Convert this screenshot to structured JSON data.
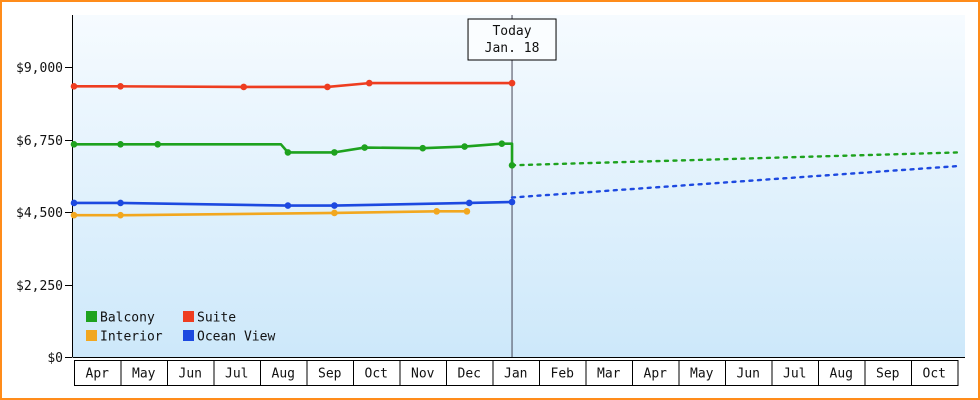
{
  "frame": {
    "border_color": "#ff8c1a"
  },
  "chart_data": {
    "type": "line",
    "title": "",
    "xlabel": "",
    "ylabel": "",
    "xlim": [
      0,
      19.2
    ],
    "ylim": [
      0,
      9750
    ],
    "grid": false,
    "y_axis": {
      "ticks": [
        0,
        2250,
        4500,
        6750,
        9000
      ],
      "tick_labels": [
        "$0",
        "$2,250",
        "$4,500",
        "$6,750",
        "$9,000"
      ]
    },
    "x_axis": {
      "unit": "month",
      "labels": [
        "Apr",
        "May",
        "Jun",
        "Jul",
        "Aug",
        "Sep",
        "Oct",
        "Nov",
        "Dec",
        "Jan",
        "Feb",
        "Mar",
        "Apr",
        "May",
        "Jun",
        "Jul",
        "Aug",
        "Sep",
        "Oct"
      ]
    },
    "today": {
      "label": [
        "Today",
        "Jan. 18"
      ],
      "month_position": 9.42
    },
    "plot_bg": {
      "top_color": "#f6fbff",
      "bottom_color": "#cde8fa"
    },
    "legend": {
      "position": "bottom-left",
      "columns": 2
    },
    "series": [
      {
        "name": "Balcony",
        "color": "#1ea21e",
        "solid": [
          [
            0,
            6600
          ],
          [
            1,
            6600
          ],
          [
            1.8,
            6600
          ],
          [
            4.45,
            6600
          ],
          [
            4.6,
            6350
          ],
          [
            5.6,
            6350
          ],
          [
            6.25,
            6500
          ],
          [
            7.5,
            6480
          ],
          [
            8.4,
            6530
          ],
          [
            9.2,
            6620
          ],
          [
            9.42,
            6620
          ],
          [
            9.42,
            5950
          ]
        ],
        "markers": [
          [
            0,
            6600
          ],
          [
            1,
            6600
          ],
          [
            1.8,
            6600
          ],
          [
            4.6,
            6350
          ],
          [
            5.6,
            6350
          ],
          [
            6.25,
            6500
          ],
          [
            7.5,
            6480
          ],
          [
            8.4,
            6530
          ],
          [
            9.2,
            6620
          ],
          [
            9.42,
            5950
          ]
        ],
        "dotted": [
          [
            9.42,
            5950
          ],
          [
            19.05,
            6350
          ]
        ]
      },
      {
        "name": "Suite",
        "color": "#ee3d20",
        "solid": [
          [
            0,
            8400
          ],
          [
            1,
            8400
          ],
          [
            3.65,
            8380
          ],
          [
            5.45,
            8380
          ],
          [
            6.35,
            8500
          ],
          [
            9.42,
            8500
          ]
        ],
        "markers": [
          [
            0,
            8400
          ],
          [
            1,
            8400
          ],
          [
            3.65,
            8380
          ],
          [
            5.45,
            8380
          ],
          [
            6.35,
            8500
          ],
          [
            9.42,
            8500
          ]
        ],
        "dotted": []
      },
      {
        "name": "Interior",
        "color": "#f2a71f",
        "solid": [
          [
            0,
            4400
          ],
          [
            1,
            4400
          ],
          [
            5.6,
            4470
          ],
          [
            7.8,
            4520
          ],
          [
            8.45,
            4520
          ]
        ],
        "markers": [
          [
            0,
            4400
          ],
          [
            1,
            4400
          ],
          [
            5.6,
            4470
          ],
          [
            7.8,
            4520
          ],
          [
            8.45,
            4520
          ]
        ],
        "dotted": []
      },
      {
        "name": "Ocean View",
        "color": "#1d49e0",
        "solid": [
          [
            0,
            4780
          ],
          [
            1,
            4780
          ],
          [
            4.6,
            4700
          ],
          [
            5.6,
            4700
          ],
          [
            8.5,
            4780
          ],
          [
            9.42,
            4810
          ]
        ],
        "markers": [
          [
            0,
            4780
          ],
          [
            1,
            4780
          ],
          [
            4.6,
            4700
          ],
          [
            5.6,
            4700
          ],
          [
            8.5,
            4780
          ],
          [
            9.42,
            4810
          ]
        ],
        "dotted": [
          [
            9.42,
            4950
          ],
          [
            19.05,
            5930
          ]
        ]
      }
    ]
  }
}
